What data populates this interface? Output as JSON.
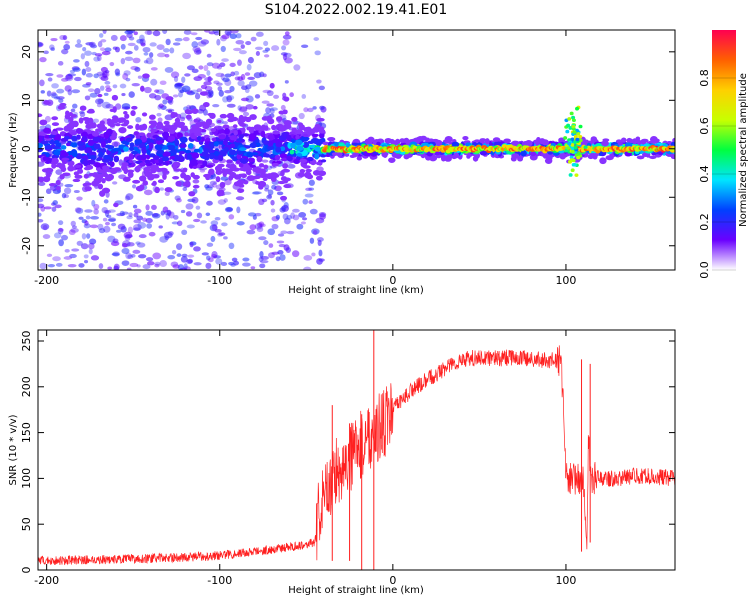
{
  "title": "S104.2022.002.19.41.E01",
  "chart_data": [
    {
      "type": "heatmap",
      "title": "S104.2022.002.19.41.E01",
      "xlabel": "Height of straight line (km)",
      "ylabel": "Frequency (Hz)",
      "xlim": [
        -205,
        163
      ],
      "ylim": [
        -25,
        24.5
      ],
      "x_ticks": [
        -200,
        -100,
        0,
        100
      ],
      "y_ticks": [
        -20,
        -10,
        0,
        10,
        20
      ],
      "colorbar": {
        "label": "Normalized spectral amplitude",
        "range": [
          0,
          1
        ],
        "ticks": [
          "0.0",
          "0.2",
          "0.4",
          "0.6",
          "0.8"
        ],
        "colormap": [
          "#ffffff",
          "#6a00ff",
          "#0040ff",
          "#00e5ff",
          "#00ff40",
          "#c8ff00",
          "#ffd000",
          "#ff6000",
          "#ff0050"
        ]
      },
      "bands": [
        {
          "x_from": -205,
          "x_to": -60,
          "center_hz": 0,
          "spread_hz": 4,
          "peak_amplitude": 0.3,
          "background_scatter": "dense"
        },
        {
          "x_from": -60,
          "x_to": -40,
          "center_hz": 0,
          "spread_hz": 2.5,
          "peak_amplitude": 0.5,
          "background_scatter": "sparse"
        },
        {
          "x_from": -40,
          "x_to": 163,
          "center_hz": 0,
          "spread_hz": 0.8,
          "peak_amplitude": 0.95,
          "background_scatter": "none"
        }
      ],
      "features": [
        {
          "x": 105,
          "center_hz": 2,
          "spread_hz": 5,
          "amplitude": 0.7
        }
      ]
    },
    {
      "type": "line",
      "xlabel": "Height of straight line (km)",
      "ylabel": "SNR (10 * v/v)",
      "xlim": [
        -205,
        163
      ],
      "ylim": [
        0,
        262
      ],
      "x_ticks": [
        -200,
        -100,
        0,
        100
      ],
      "y_ticks": [
        0,
        50,
        100,
        150,
        200,
        250
      ],
      "color": "#ff2020",
      "series": [
        {
          "x": [
            -205,
            -180,
            -150,
            -120,
            -100,
            -80,
            -60,
            -50,
            -45,
            -43,
            -40,
            -36,
            -32,
            -28,
            -25,
            -20,
            -15,
            -10,
            -5,
            0,
            5,
            10,
            20,
            30,
            40,
            50,
            60,
            70,
            80,
            90,
            97,
            99,
            100,
            105,
            110,
            112,
            113,
            115,
            120,
            130,
            140,
            150,
            163
          ],
          "y": [
            10,
            11,
            12,
            14,
            16,
            20,
            25,
            28,
            30,
            60,
            75,
            95,
            110,
            115,
            122,
            132,
            145,
            152,
            160,
            175,
            185,
            195,
            208,
            220,
            230,
            232,
            231,
            232,
            230,
            229,
            228,
            160,
            100,
            100,
            95,
            30,
            140,
            100,
            100,
            100,
            103,
            102,
            100
          ]
        }
      ],
      "spikes": [
        {
          "x": -35,
          "y_min": 10,
          "y_max": 180
        },
        {
          "x": -25,
          "y_min": 10,
          "y_max": 160
        },
        {
          "x": -18,
          "y_min": 0,
          "y_max": 170
        },
        {
          "x": -11,
          "y_min": 0,
          "y_max": 262
        },
        {
          "x": 109,
          "y_min": 20,
          "y_max": 230
        },
        {
          "x": 114,
          "y_min": 30,
          "y_max": 225
        }
      ]
    }
  ]
}
